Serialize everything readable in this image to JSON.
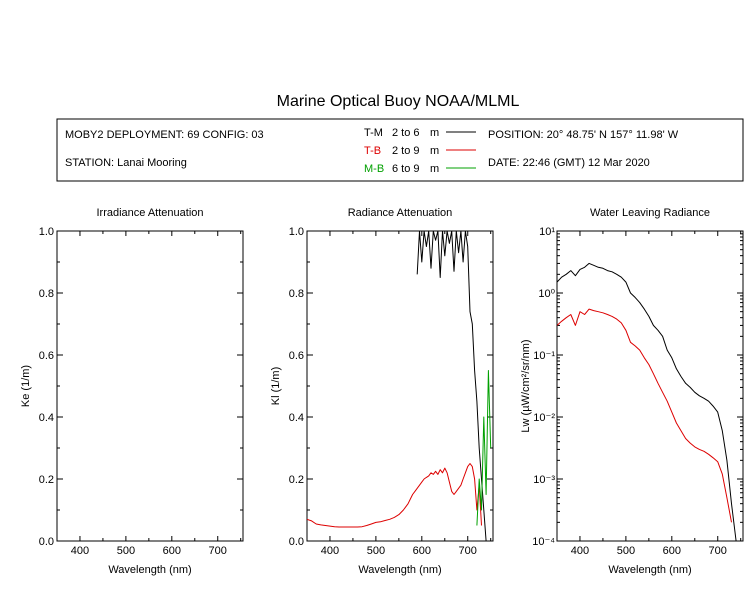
{
  "title": "Marine Optical Buoy NOAA/MLML",
  "info": {
    "deployment": "MOBY2 DEPLOYMENT: 69 CONFIG: 03",
    "station": "STATION: Lanai Mooring",
    "position": "POSITION: 20° 48.75' N   157° 11.98' W",
    "date": "DATE: 22:46 (GMT) 12 Mar 2020"
  },
  "legend": [
    {
      "code": "T-M",
      "range": "2 to 6",
      "unit": "m",
      "color": "#000000"
    },
    {
      "code": "T-B",
      "range": "2 to 9",
      "unit": "m",
      "color": "#dd0000"
    },
    {
      "code": "M-B",
      "range": "6 to 9",
      "unit": "m",
      "color": "#00a000"
    }
  ],
  "colors": {
    "black": "#000000",
    "red": "#dd0000",
    "green": "#00a000"
  },
  "chart_data": [
    {
      "type": "line",
      "title": "Irradiance Attenuation",
      "xlabel": "Wavelength (nm)",
      "ylabel": "Ke  (1/m)",
      "xlim": [
        350,
        755
      ],
      "ylim": [
        0,
        1
      ],
      "xticks": [
        "400",
        "500",
        "600",
        "700"
      ],
      "yticks": [
        "0.0",
        "0.2",
        "0.4",
        "0.6",
        "0.8",
        "1.0"
      ],
      "series": []
    },
    {
      "type": "line",
      "title": "Radiance Attenuation",
      "xlabel": "Wavelength (nm)",
      "ylabel": "Kl  (1/m)",
      "xlim": [
        350,
        755
      ],
      "ylim": [
        0,
        1
      ],
      "xticks": [
        "400",
        "500",
        "600",
        "700"
      ],
      "yticks": [
        "0.0",
        "0.2",
        "0.4",
        "0.6",
        "0.8",
        "1.0"
      ],
      "series": [
        {
          "key": "T-M",
          "color": "#000000",
          "x": [
            590,
            595,
            600,
            605,
            610,
            615,
            620,
            625,
            630,
            635,
            640,
            645,
            650,
            655,
            660,
            665,
            670,
            675,
            680,
            685,
            690,
            695,
            700,
            705,
            710,
            715,
            720,
            725,
            730,
            735,
            740
          ],
          "y": [
            0.86,
            1.0,
            0.9,
            1.0,
            0.95,
            1.0,
            0.88,
            1.0,
            0.97,
            1.0,
            0.85,
            1.0,
            0.92,
            1.0,
            0.96,
            1.0,
            0.87,
            1.0,
            0.93,
            1.0,
            0.9,
            1.0,
            0.95,
            0.74,
            0.7,
            0.55,
            0.45,
            0.3,
            0.2,
            0.1,
            0.0
          ]
        },
        {
          "key": "T-B",
          "color": "#dd0000",
          "x": [
            350,
            360,
            370,
            380,
            390,
            400,
            410,
            420,
            430,
            440,
            450,
            460,
            470,
            480,
            490,
            500,
            510,
            520,
            530,
            540,
            550,
            560,
            570,
            575,
            580,
            585,
            590,
            595,
            600,
            605,
            610,
            615,
            620,
            625,
            630,
            635,
            640,
            645,
            650,
            655,
            660,
            665,
            670,
            675,
            680,
            685,
            690,
            695,
            700,
            705,
            710,
            715,
            720,
            725,
            730
          ],
          "y": [
            0.07,
            0.065,
            0.055,
            0.052,
            0.05,
            0.048,
            0.046,
            0.045,
            0.045,
            0.045,
            0.045,
            0.045,
            0.046,
            0.05,
            0.055,
            0.06,
            0.062,
            0.066,
            0.07,
            0.076,
            0.085,
            0.1,
            0.12,
            0.135,
            0.15,
            0.16,
            0.17,
            0.18,
            0.19,
            0.2,
            0.205,
            0.21,
            0.22,
            0.215,
            0.225,
            0.215,
            0.23,
            0.22,
            0.235,
            0.22,
            0.19,
            0.16,
            0.15,
            0.16,
            0.17,
            0.18,
            0.2,
            0.22,
            0.24,
            0.25,
            0.24,
            0.2,
            0.1,
            0.18,
            0.05
          ]
        },
        {
          "key": "M-B",
          "color": "#00a000",
          "x": [
            720,
            725,
            730,
            735,
            740,
            745,
            750
          ],
          "y": [
            0.05,
            0.2,
            0.1,
            0.4,
            0.15,
            0.55,
            0.3
          ]
        }
      ]
    },
    {
      "type": "line",
      "title": "Water Leaving Radiance",
      "xlabel": "Wavelength (nm)",
      "ylabel": "Lw  (µW/cm²/sr/nm)",
      "xlim": [
        350,
        755
      ],
      "ylim": [
        0.0001,
        10
      ],
      "yscale": "log",
      "xticks": [
        "400",
        "500",
        "600",
        "700"
      ],
      "yticks": [
        "10⁻⁴",
        "10⁻³",
        "10⁻²",
        "10⁻¹",
        "10⁰",
        "10¹"
      ],
      "series": [
        {
          "key": "T-M",
          "color": "#000000",
          "x": [
            350,
            360,
            370,
            380,
            390,
            400,
            410,
            420,
            430,
            440,
            450,
            460,
            470,
            480,
            490,
            500,
            510,
            520,
            530,
            540,
            550,
            560,
            570,
            580,
            590,
            600,
            610,
            620,
            630,
            640,
            650,
            660,
            670,
            680,
            690,
            700,
            710,
            720,
            730,
            740
          ],
          "y": [
            1.5,
            1.8,
            2.0,
            2.3,
            1.9,
            2.4,
            2.6,
            3.0,
            2.8,
            2.6,
            2.5,
            2.3,
            2.2,
            2.0,
            1.8,
            1.5,
            1.0,
            0.85,
            0.7,
            0.55,
            0.42,
            0.3,
            0.25,
            0.2,
            0.12,
            0.09,
            0.06,
            0.045,
            0.035,
            0.03,
            0.025,
            0.022,
            0.02,
            0.018,
            0.015,
            0.012,
            0.006,
            0.002,
            0.0004,
            0.0001
          ]
        },
        {
          "key": "T-B",
          "color": "#dd0000",
          "x": [
            350,
            360,
            370,
            380,
            390,
            400,
            410,
            420,
            430,
            440,
            450,
            460,
            470,
            480,
            490,
            500,
            510,
            520,
            530,
            540,
            550,
            560,
            570,
            580,
            590,
            600,
            610,
            620,
            630,
            640,
            650,
            660,
            670,
            680,
            690,
            700,
            710,
            720,
            730
          ],
          "y": [
            0.3,
            0.35,
            0.4,
            0.45,
            0.3,
            0.5,
            0.45,
            0.55,
            0.52,
            0.5,
            0.48,
            0.45,
            0.42,
            0.38,
            0.33,
            0.25,
            0.16,
            0.14,
            0.12,
            0.09,
            0.07,
            0.05,
            0.035,
            0.025,
            0.018,
            0.012,
            0.008,
            0.006,
            0.0045,
            0.0038,
            0.0033,
            0.003,
            0.0028,
            0.0025,
            0.0022,
            0.0019,
            0.0012,
            0.0005,
            0.0002
          ]
        }
      ]
    }
  ]
}
